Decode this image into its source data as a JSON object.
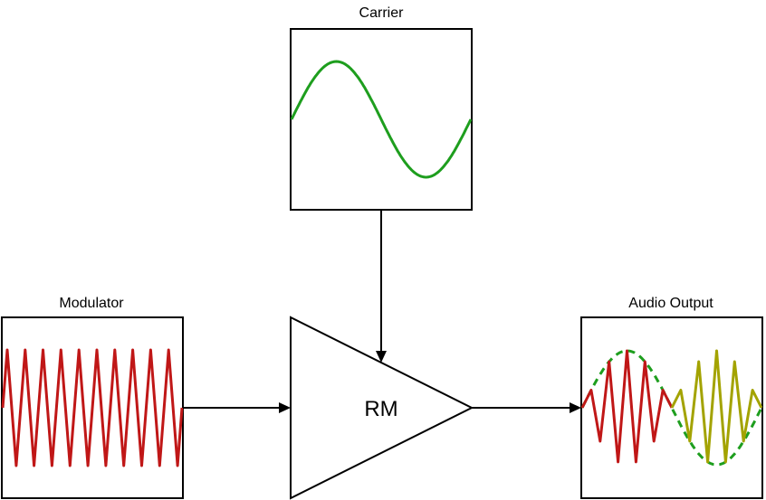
{
  "labels": {
    "carrier": "Carrier",
    "modulator": "Modulator",
    "audio_output": "Audio Output",
    "ring_modulator": "RM"
  },
  "colors": {
    "carrier_wave": "#1e9e1e",
    "modulator_wave": "#c01717",
    "output_first_half": "#c01717",
    "output_second_half": "#a3a300",
    "envelope": "#1e9e1e",
    "stroke": "#000000"
  },
  "waves": {
    "carrier_cycles": 1,
    "modulator_cycles": 10,
    "output_envelope_cycles": 1,
    "output_carrier_cycles": 10
  }
}
